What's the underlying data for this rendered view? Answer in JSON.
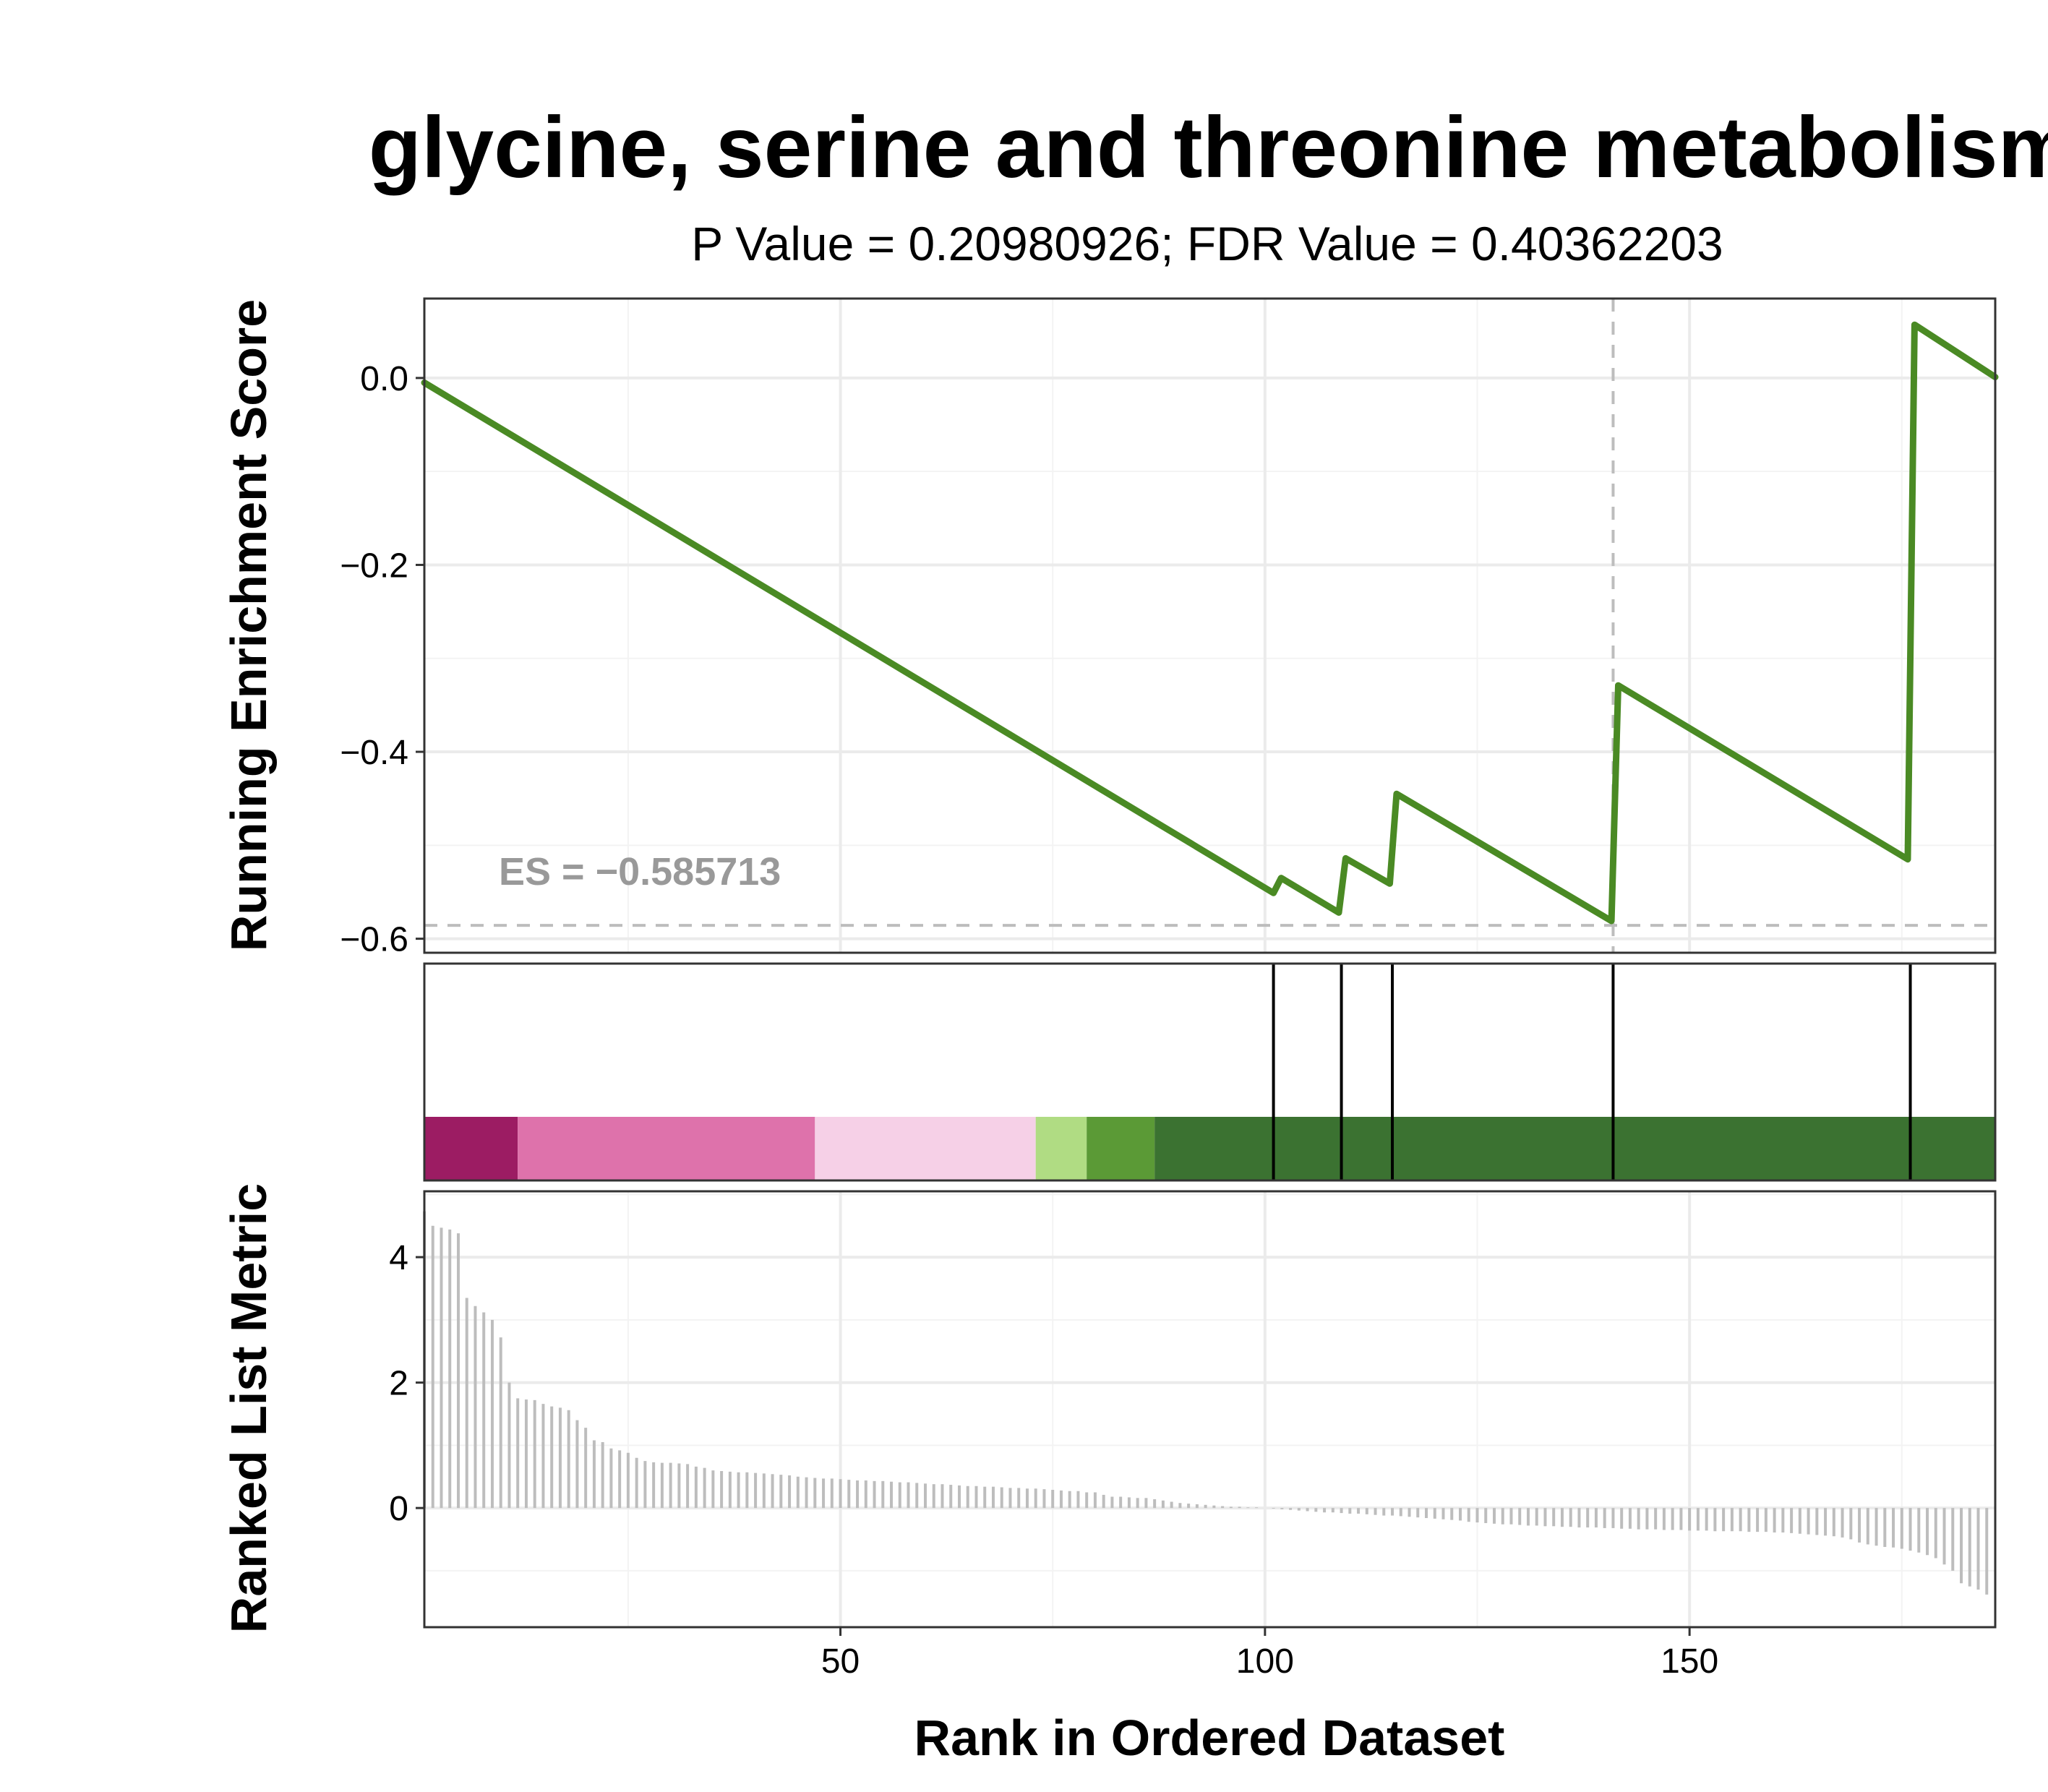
{
  "colors": {
    "es_line": "#4a8a24",
    "ref_line": "#bdbdbd",
    "hit_line": "#000000",
    "metric_bar": "#bdbdbd",
    "es_label": "#999999"
  },
  "chart_data": {
    "type": "line",
    "title": "glycine, serine and threonine metabolism",
    "subtitle": "P Value = 0.20980926; FDR Value = 0.40362203",
    "xlabel": "Rank in Ordered Dataset",
    "xlim": [
      1,
      186
    ],
    "x_ticks": [
      50,
      100,
      150
    ],
    "x_tick_labels": [
      "50",
      "100",
      "150"
    ],
    "grid": true,
    "panels": {
      "running_es": {
        "ylabel": "Running Enrichment Score",
        "ylim": [
          -0.615,
          0.085
        ],
        "y_ticks": [
          0,
          -0.2,
          -0.4,
          -0.6
        ],
        "y_tick_labels": [
          "0.0",
          "−0.2",
          "−0.4",
          "−0.6"
        ],
        "es_label": "ES = −0.585713",
        "es_value": -0.585713,
        "es_position_rank": 141,
        "series": [
          {
            "x": [
              1,
              101,
              101.9,
              108.7,
              109.5,
              114.7,
              115.5,
              140.8,
              141.6,
              175.7,
              176.5,
              186
            ],
            "values": [
              -0.005,
              -0.551,
              -0.535,
              -0.572,
              -0.514,
              -0.541,
              -0.445,
              -0.581,
              -0.329,
              -0.515,
              0.057,
              0.001
            ]
          }
        ]
      },
      "gene_hits": {
        "hit_ranks": [
          101,
          109,
          115,
          141,
          176
        ],
        "color_bar": [
          {
            "from": 1,
            "to": 12,
            "color": "#9c1c63"
          },
          {
            "from": 12,
            "to": 47,
            "color": "#de72ab"
          },
          {
            "from": 47,
            "to": 73,
            "color": "#f6d0e7"
          },
          {
            "from": 73,
            "to": 79,
            "color": "#b0dc83"
          },
          {
            "from": 79,
            "to": 87,
            "color": "#5b9a36"
          },
          {
            "from": 87,
            "to": 186,
            "color": "#3b7231"
          }
        ]
      },
      "ranked_metric": {
        "ylabel": "Ranked List Metric",
        "ylim": [
          -1.9,
          5.05
        ],
        "y_ticks": [
          0,
          2,
          4
        ],
        "y_tick_labels": [
          "0",
          "2",
          "4"
        ],
        "values": [
          4.73,
          4.5,
          4.47,
          4.44,
          4.38,
          3.35,
          3.22,
          3.12,
          3.0,
          2.72,
          2.0,
          1.75,
          1.73,
          1.72,
          1.66,
          1.62,
          1.6,
          1.56,
          1.4,
          1.28,
          1.08,
          1.05,
          0.95,
          0.92,
          0.88,
          0.8,
          0.75,
          0.73,
          0.72,
          0.72,
          0.71,
          0.7,
          0.66,
          0.64,
          0.6,
          0.59,
          0.58,
          0.57,
          0.57,
          0.56,
          0.55,
          0.54,
          0.53,
          0.52,
          0.5,
          0.49,
          0.48,
          0.47,
          0.47,
          0.46,
          0.45,
          0.44,
          0.44,
          0.43,
          0.43,
          0.42,
          0.41,
          0.41,
          0.4,
          0.39,
          0.38,
          0.38,
          0.37,
          0.36,
          0.35,
          0.35,
          0.34,
          0.34,
          0.33,
          0.32,
          0.32,
          0.31,
          0.31,
          0.3,
          0.29,
          0.28,
          0.27,
          0.27,
          0.25,
          0.25,
          0.21,
          0.18,
          0.18,
          0.17,
          0.16,
          0.16,
          0.14,
          0.12,
          0.1,
          0.08,
          0.07,
          0.06,
          0.05,
          0.04,
          0.03,
          0.02,
          0.02,
          0.01,
          0.01,
          0.0,
          -0.01,
          -0.02,
          -0.03,
          -0.04,
          -0.05,
          -0.06,
          -0.07,
          -0.07,
          -0.08,
          -0.09,
          -0.09,
          -0.1,
          -0.11,
          -0.12,
          -0.12,
          -0.13,
          -0.14,
          -0.15,
          -0.16,
          -0.17,
          -0.18,
          -0.19,
          -0.2,
          -0.22,
          -0.23,
          -0.24,
          -0.25,
          -0.26,
          -0.26,
          -0.27,
          -0.28,
          -0.28,
          -0.29,
          -0.29,
          -0.3,
          -0.3,
          -0.31,
          -0.31,
          -0.31,
          -0.32,
          -0.32,
          -0.33,
          -0.33,
          -0.34,
          -0.34,
          -0.34,
          -0.35,
          -0.35,
          -0.35,
          -0.36,
          -0.36,
          -0.36,
          -0.37,
          -0.37,
          -0.37,
          -0.37,
          -0.38,
          -0.38,
          -0.38,
          -0.39,
          -0.39,
          -0.4,
          -0.41,
          -0.42,
          -0.43,
          -0.44,
          -0.45,
          -0.47,
          -0.5,
          -0.55,
          -0.58,
          -0.6,
          -0.62,
          -0.63,
          -0.65,
          -0.68,
          -0.71,
          -0.75,
          -0.8,
          -0.9,
          -1.0,
          -1.2,
          -1.25,
          -1.3,
          -1.38
        ]
      }
    }
  }
}
